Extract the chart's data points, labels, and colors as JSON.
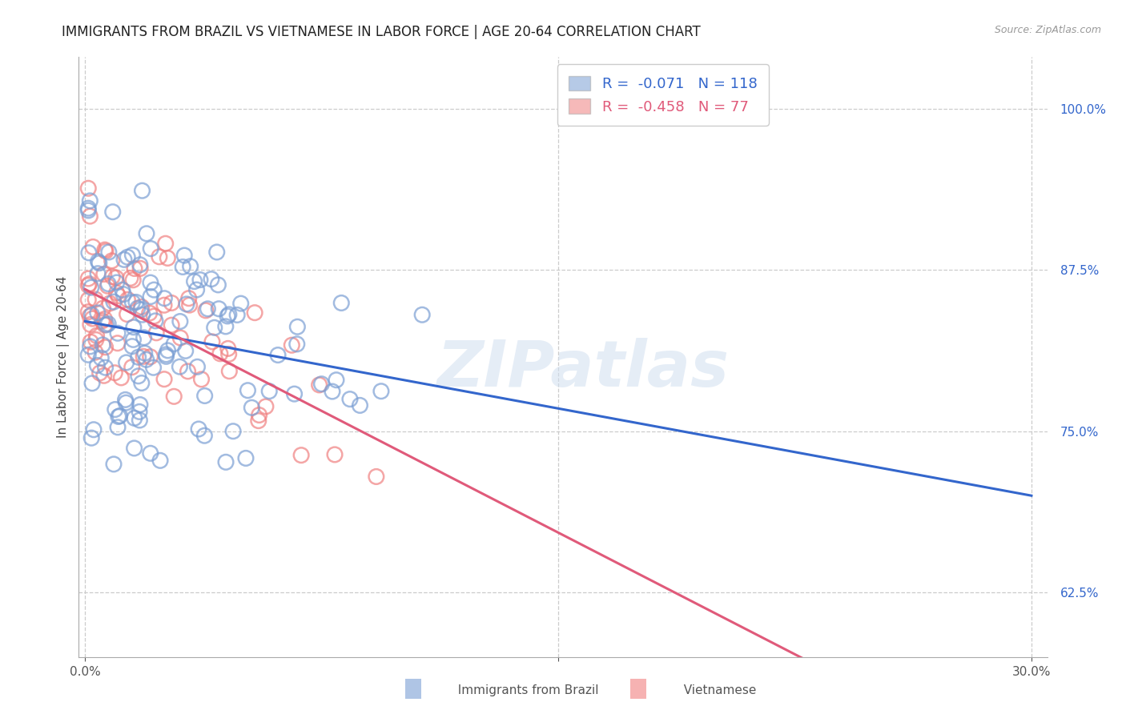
{
  "title": "IMMIGRANTS FROM BRAZIL VS VIETNAMESE IN LABOR FORCE | AGE 20-64 CORRELATION CHART",
  "source": "Source: ZipAtlas.com",
  "ylabel": "In Labor Force | Age 20-64",
  "ytick_labels": [
    "62.5%",
    "75.0%",
    "87.5%",
    "100.0%"
  ],
  "ytick_values": [
    0.625,
    0.75,
    0.875,
    1.0
  ],
  "xtick_labels": [
    "0.0%",
    "30.0%"
  ],
  "xtick_values": [
    0.0,
    0.3
  ],
  "xlim": [
    -0.002,
    0.305
  ],
  "ylim": [
    0.575,
    1.04
  ],
  "brazil_R": -0.071,
  "brazil_N": 118,
  "viet_R": -0.458,
  "viet_N": 77,
  "brazil_color": "#7b9fd4",
  "viet_color": "#f08080",
  "brazil_line_color": "#3366cc",
  "viet_line_color": "#e05a7a",
  "watermark": "ZIPatlas",
  "background_color": "#ffffff",
  "grid_color": "#cccccc",
  "title_fontsize": 12,
  "axis_label_fontsize": 11,
  "tick_fontsize": 11
}
